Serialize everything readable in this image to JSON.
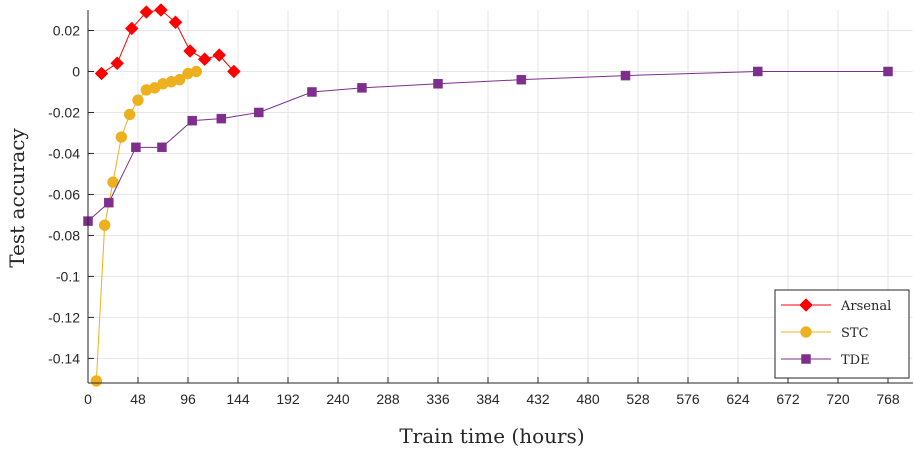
{
  "chart_data": {
    "type": "line",
    "xlabel": "Train time (hours)",
    "ylabel": "Test accuracy",
    "xlim": [
      0,
      792
    ],
    "ylim": [
      -0.152,
      0.03
    ],
    "xticks": [
      0,
      48,
      96,
      144,
      192,
      240,
      288,
      336,
      384,
      432,
      480,
      528,
      576,
      624,
      672,
      720,
      768
    ],
    "yticks": [
      0.02,
      0,
      -0.02,
      -0.04,
      -0.06,
      -0.08,
      -0.1,
      -0.12,
      -0.14
    ],
    "ytick_labels": [
      "0.02",
      "0",
      "-0.02",
      "-0.04",
      "-0.06",
      "-0.08",
      "-0.1",
      "-0.12",
      "-0.14"
    ],
    "grid": true,
    "legend_position": "bottom-right",
    "series": [
      {
        "name": "Arsenal",
        "color": "#ff0000",
        "marker": "diamond",
        "x": [
          13,
          28,
          42,
          56,
          70,
          84,
          98,
          112,
          126,
          140
        ],
        "y": [
          -0.001,
          0.004,
          0.021,
          0.029,
          0.03,
          0.024,
          0.01,
          0.006,
          0.008,
          0.0
        ]
      },
      {
        "name": "STC",
        "color": "#edb120",
        "marker": "circle",
        "x": [
          8,
          16,
          24,
          32,
          40,
          48,
          56,
          64,
          72,
          80,
          88,
          96,
          104
        ],
        "y": [
          -0.151,
          -0.075,
          -0.054,
          -0.032,
          -0.021,
          -0.014,
          -0.009,
          -0.008,
          -0.006,
          -0.005,
          -0.004,
          -0.001,
          0.0
        ]
      },
      {
        "name": "TDE",
        "color": "#7e2f8e",
        "marker": "square",
        "x": [
          0,
          20,
          46,
          71,
          100,
          128,
          164,
          215,
          263,
          336,
          416,
          516,
          643,
          768
        ],
        "y": [
          -0.073,
          -0.064,
          -0.037,
          -0.037,
          -0.024,
          -0.023,
          -0.02,
          -0.01,
          -0.008,
          -0.006,
          -0.004,
          -0.002,
          0.0,
          0.0
        ]
      }
    ]
  }
}
